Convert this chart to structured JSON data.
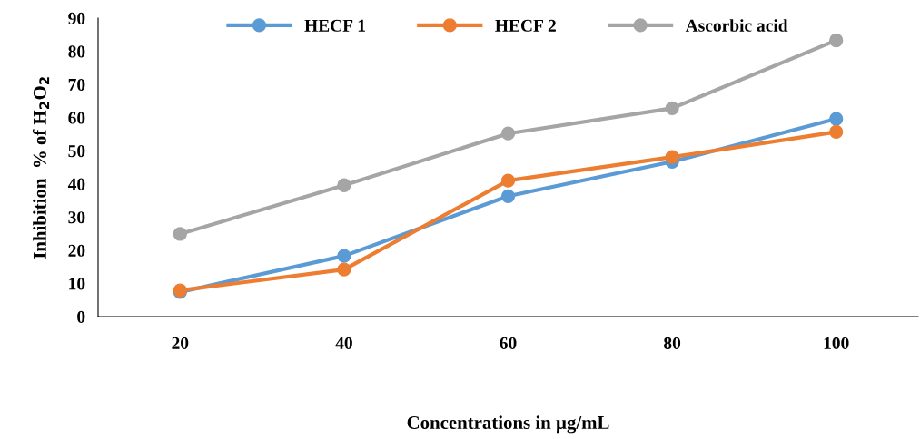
{
  "chart_data": {
    "type": "line",
    "xlabel": "Concentrations in µg/mL",
    "ylabel": "Inhibition  % of H$_{2}$O$_{2}$",
    "categories": [
      "20",
      "40",
      "60",
      "80",
      "100"
    ],
    "series": [
      {
        "name": "HECF 1",
        "color": "#5b9bd5",
        "values": [
          7.4,
          18.3,
          36.3,
          46.7,
          59.6
        ]
      },
      {
        "name": "HECF 2",
        "color": "#ed7d31",
        "values": [
          7.9,
          14.2,
          41,
          48.1,
          55.7
        ]
      },
      {
        "name": "Ascorbic acid",
        "color": "#a5a5a5",
        "values": [
          24.9,
          39.6,
          55.2,
          62.8,
          83.3
        ]
      }
    ],
    "ylim": [
      0,
      90
    ],
    "yticks": [
      0,
      10,
      20,
      30,
      40,
      50,
      60,
      70,
      80,
      90
    ],
    "grid": false,
    "legend": "top",
    "marker": "circle",
    "line_style": "solid"
  }
}
